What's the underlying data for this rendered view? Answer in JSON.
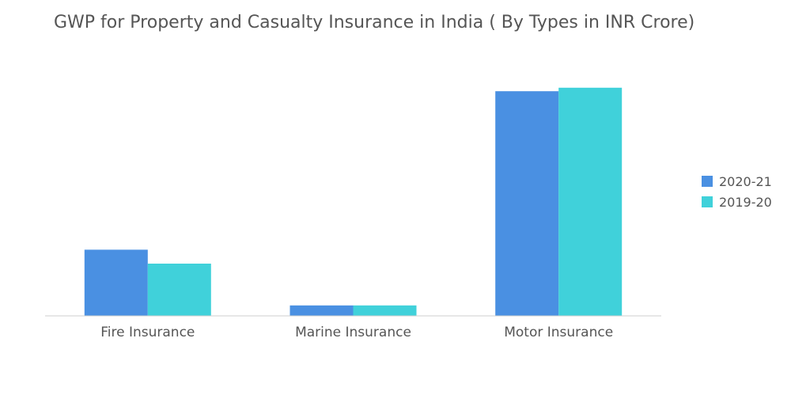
{
  "chart_data": {
    "type": "bar",
    "title": "GWP for Property and Casualty Insurance in India ( By Types in INR Crore)",
    "xlabel": "",
    "ylabel": "",
    "categories": [
      "Fire Insurance",
      "Marine Insurance",
      "Motor Insurance"
    ],
    "series": [
      {
        "name": "2020-21",
        "color": "#4a90e2",
        "values": [
          19000,
          3000,
          64500
        ]
      },
      {
        "name": "2019-20",
        "color": "#40d1da",
        "values": [
          15000,
          3000,
          65500
        ]
      }
    ],
    "ylim": [
      0,
      70000
    ],
    "grid": false,
    "legend": "right"
  }
}
